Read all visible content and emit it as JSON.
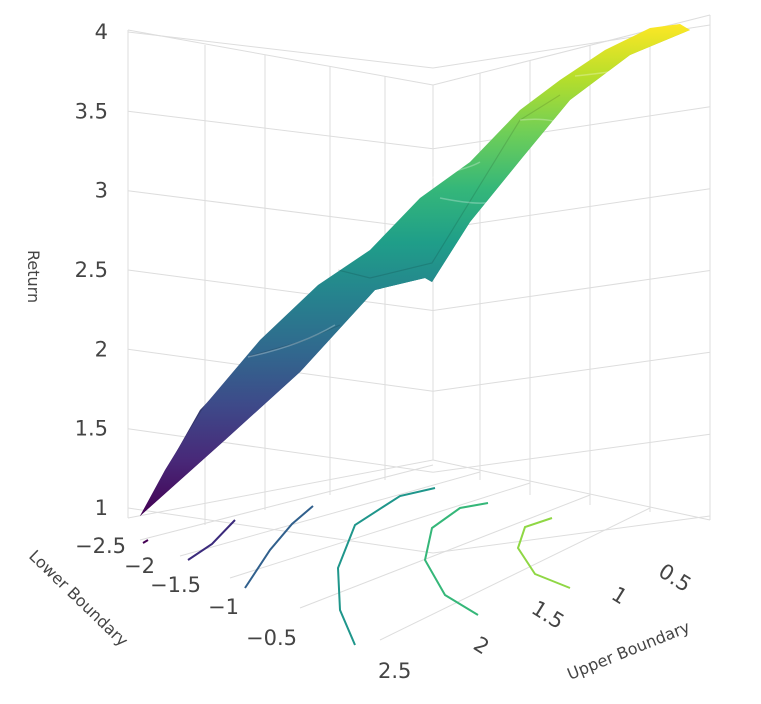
{
  "chart_data": {
    "type": "surface",
    "colorscale": "viridis",
    "axes": {
      "x": {
        "label": "Lower Boundary",
        "ticks": [
          "−2.5",
          "−2",
          "−1.5",
          "−1",
          "−0.5",
          "2.5"
        ]
      },
      "y": {
        "label": "Upper Boundary",
        "ticks": [
          "2",
          "1.5",
          "1",
          "0.5"
        ]
      },
      "z": {
        "label": "Return",
        "ticks": [
          "1",
          "1.5",
          "2",
          "2.5",
          "3",
          "3.5",
          "4"
        ],
        "range": [
          1,
          4
        ]
      }
    },
    "surface_profile": [
      {
        "z": 1.0
      },
      {
        "z": 1.5
      },
      {
        "z": 2.0
      },
      {
        "z": 2.5
      },
      {
        "z": 3.0
      },
      {
        "z": 3.5
      },
      {
        "z": 4.0
      }
    ],
    "contour_levels": [
      1.5,
      2.0,
      2.5,
      3.0,
      3.5,
      4.0
    ],
    "grid": true
  }
}
